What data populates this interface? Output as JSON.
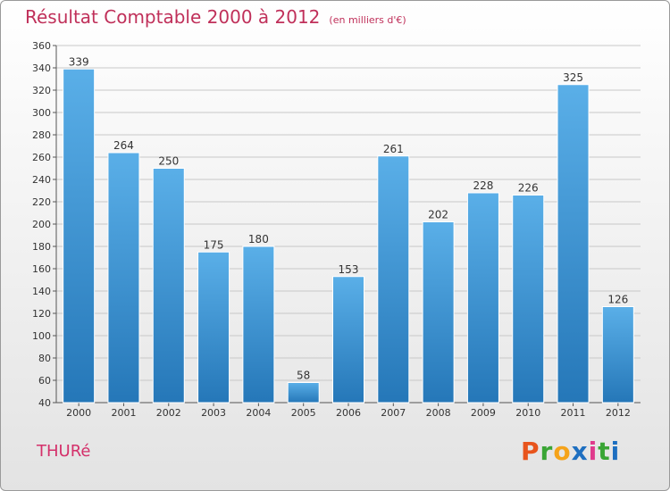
{
  "page": {
    "commune": "THURé",
    "logo_letters": [
      "P",
      "r",
      "o",
      "x",
      "i",
      "t",
      "i"
    ],
    "logo_colors": [
      "#e8541c",
      "#3aa535",
      "#f5a31a",
      "#1e6fc0",
      "#e03a8c",
      "#3aa535",
      "#1e6fc0"
    ]
  },
  "chart_data": {
    "type": "bar",
    "title": "Résultat Comptable 2000 à 2012",
    "subtitle": "(en milliers d'€)",
    "xlabel": "",
    "ylabel": "",
    "ylim": [
      40,
      360
    ],
    "yticks": [
      40,
      60,
      80,
      100,
      120,
      140,
      160,
      180,
      200,
      220,
      240,
      260,
      280,
      300,
      320,
      340,
      360
    ],
    "grid": true,
    "categories": [
      "2000",
      "2001",
      "2002",
      "2003",
      "2004",
      "2005",
      "2006",
      "2007",
      "2008",
      "2009",
      "2010",
      "2011",
      "2012"
    ],
    "values": [
      339,
      264,
      250,
      175,
      180,
      58,
      153,
      261,
      202,
      228,
      226,
      325,
      126
    ],
    "bar_color_top": "#5aafe8",
    "bar_color_bottom": "#2577b8"
  }
}
